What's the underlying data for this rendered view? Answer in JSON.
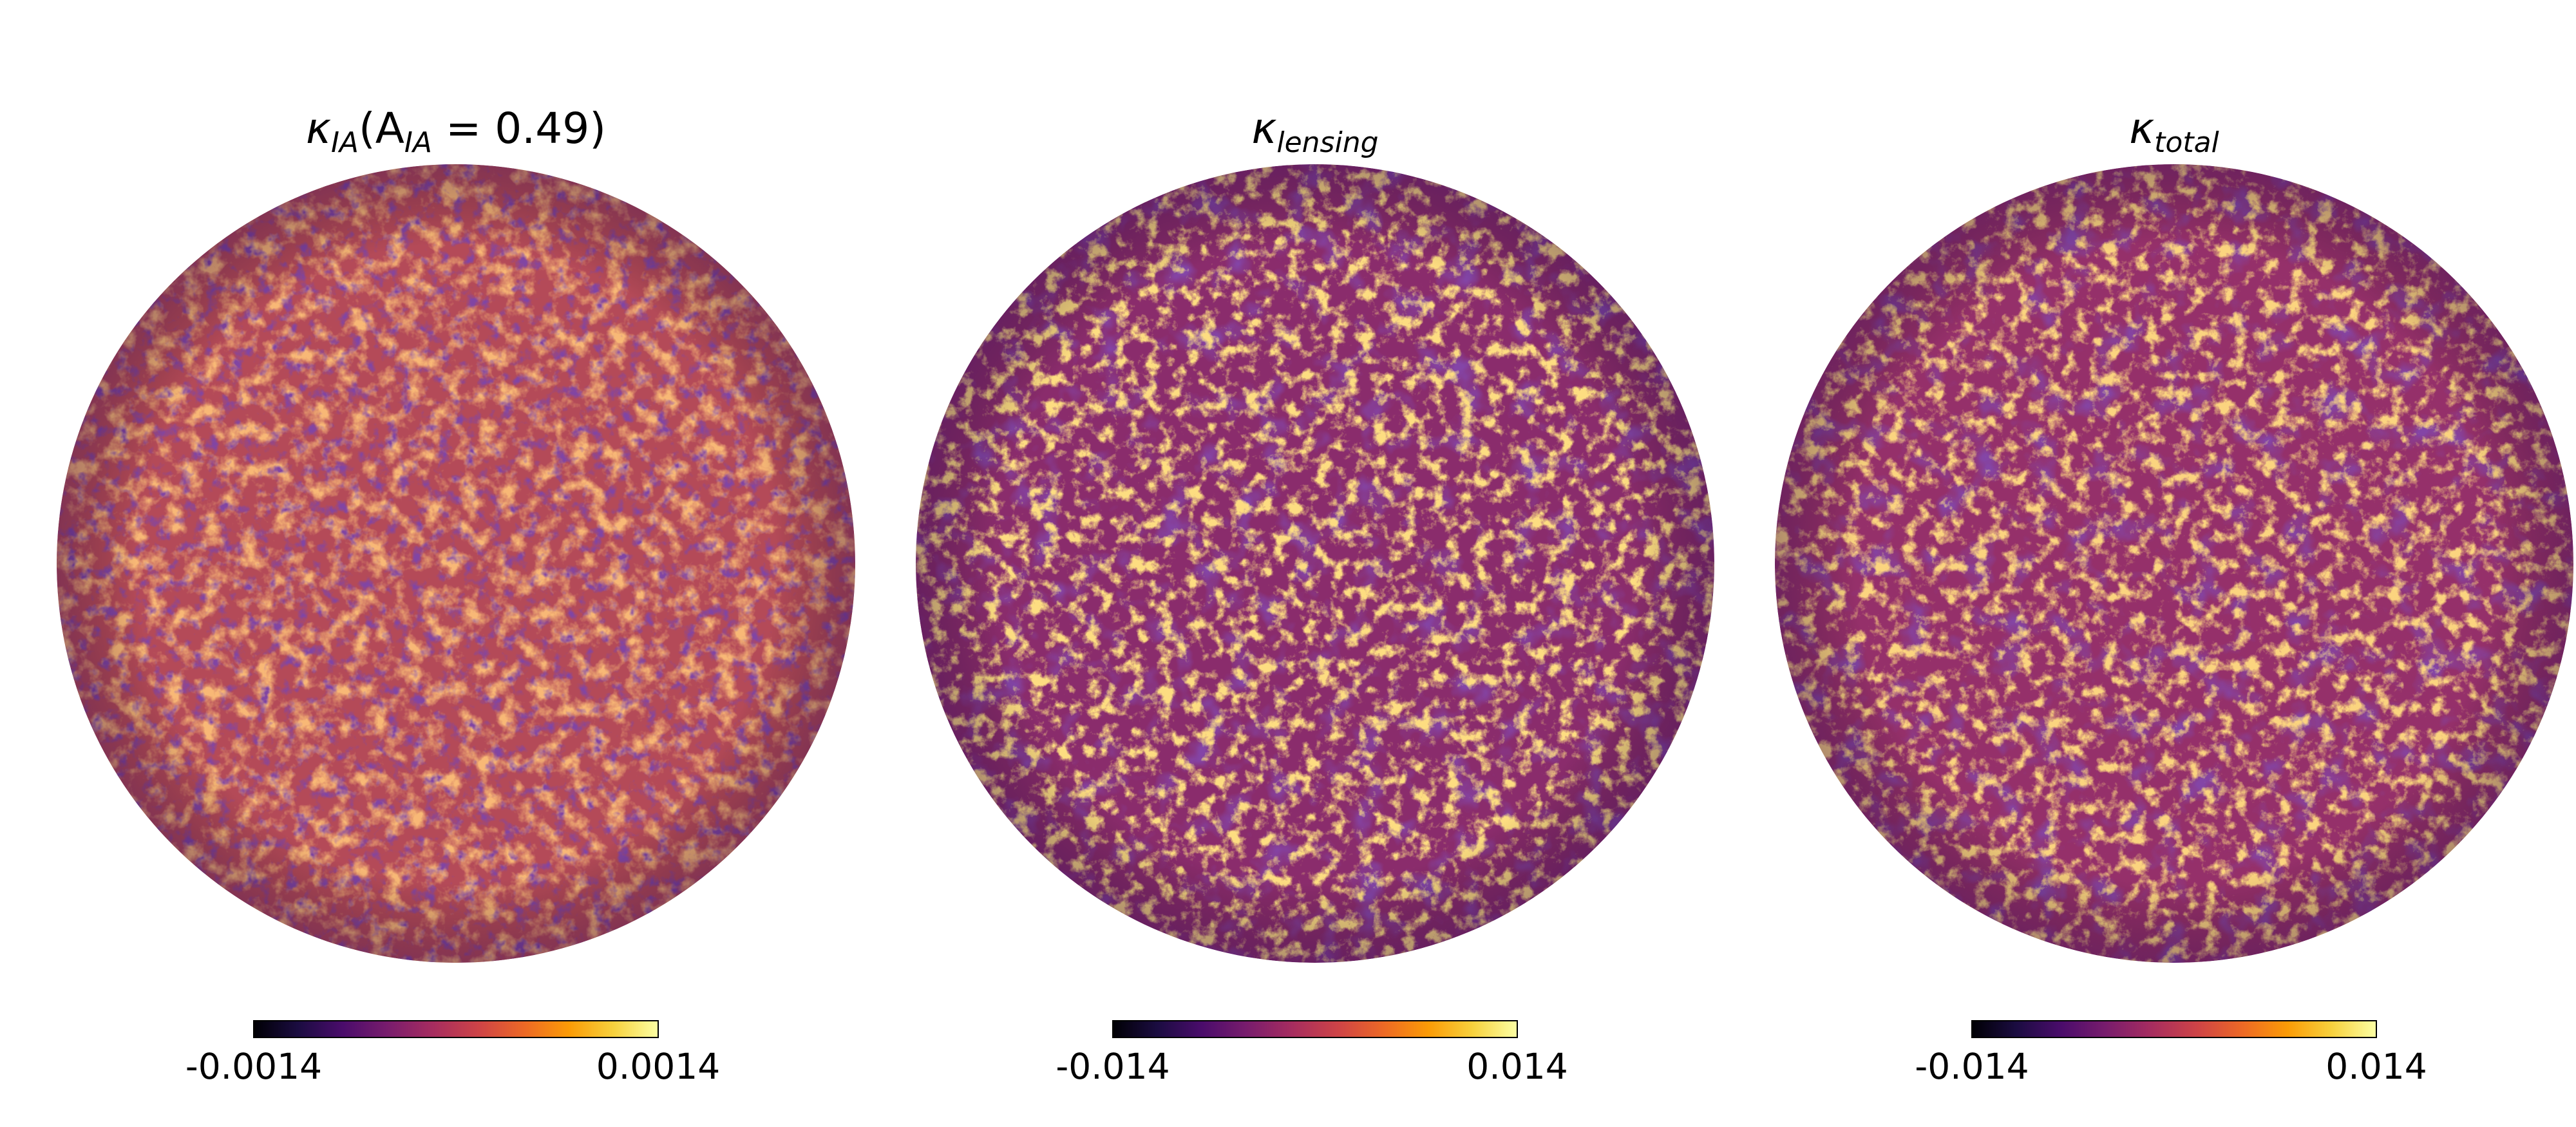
{
  "figure": {
    "colormap": "inferno",
    "colormap_stops": [
      "#000004",
      "#1b0c41",
      "#4a0c6b",
      "#781c6d",
      "#a52c60",
      "#cf4446",
      "#ed6925",
      "#fb9b06",
      "#f7d13d",
      "#fcffa4"
    ],
    "panels": [
      {
        "id": "ia",
        "title_main": "κ",
        "title_sub": "IA",
        "title_rest": "(A",
        "title_rest_sub": "IA",
        "title_tail": " = 0.49)",
        "cbar_min": "-0.0014",
        "cbar_max": "0.0014",
        "texture": {
          "base": "#b54a56",
          "seed": 3,
          "freq": "0.035",
          "light": "#ef7a2f",
          "dark": "#3d0f5e"
        }
      },
      {
        "id": "lensing",
        "title_main": "κ",
        "title_sub": "lensing",
        "cbar_min": "-0.014",
        "cbar_max": "0.014",
        "texture": {
          "base": "#8f2d6a",
          "seed": 11,
          "freq": "0.045",
          "light": "#f9b43a",
          "dark": "#3a0f63"
        }
      },
      {
        "id": "total",
        "title_main": "κ",
        "title_sub": "total",
        "cbar_min": "-0.014",
        "cbar_max": "0.014",
        "texture": {
          "base": "#9a3266",
          "seed": 17,
          "freq": "0.045",
          "light": "#f6a935",
          "dark": "#3b0f60"
        }
      }
    ]
  }
}
